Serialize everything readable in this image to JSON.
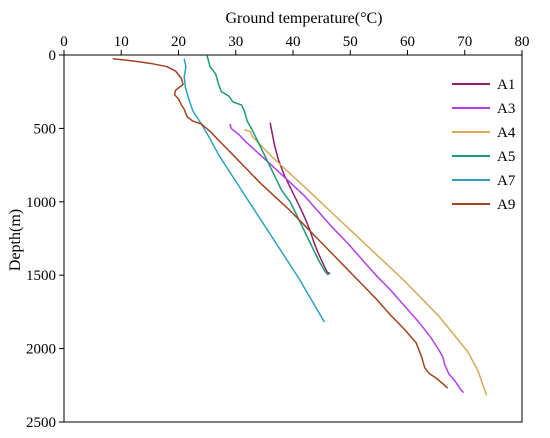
{
  "chart_data": {
    "type": "line",
    "xlabel": "Ground temperature(°C)",
    "ylabel": "Depth(m)",
    "xlim": [
      0,
      80
    ],
    "ylim": [
      0,
      2500
    ],
    "y_reversed": true,
    "x_axis_position": "top",
    "xticks": [
      0,
      10,
      20,
      30,
      40,
      50,
      60,
      70,
      80
    ],
    "yticks": [
      0,
      500,
      1000,
      1500,
      2000,
      2500
    ],
    "grid": false,
    "legend_position": "top-right",
    "series": [
      {
        "name": "A1",
        "color": "#8e1f6e",
        "points": [
          [
            36.0,
            460
          ],
          [
            36.3,
            520
          ],
          [
            36.8,
            620
          ],
          [
            37.5,
            720
          ],
          [
            38.5,
            820
          ],
          [
            39.5,
            900
          ],
          [
            40.5,
            980
          ],
          [
            41.5,
            1060
          ],
          [
            42.3,
            1130
          ],
          [
            43.0,
            1200
          ],
          [
            43.6,
            1270
          ],
          [
            44.3,
            1340
          ],
          [
            45.0,
            1400
          ],
          [
            45.6,
            1450
          ],
          [
            46.0,
            1480
          ],
          [
            46.5,
            1490
          ]
        ]
      },
      {
        "name": "A3",
        "color": "#b43ee8",
        "points": [
          [
            29.0,
            470
          ],
          [
            29.2,
            500
          ],
          [
            30.5,
            540
          ],
          [
            32.0,
            600
          ],
          [
            34.0,
            670
          ],
          [
            36.5,
            760
          ],
          [
            39.0,
            850
          ],
          [
            42.0,
            960
          ],
          [
            44.5,
            1070
          ],
          [
            47.0,
            1180
          ],
          [
            49.5,
            1280
          ],
          [
            52.0,
            1390
          ],
          [
            54.5,
            1500
          ],
          [
            57.0,
            1600
          ],
          [
            59.5,
            1710
          ],
          [
            62.0,
            1820
          ],
          [
            64.0,
            1920
          ],
          [
            65.5,
            2010
          ],
          [
            66.2,
            2060
          ],
          [
            66.5,
            2110
          ],
          [
            67.2,
            2170
          ],
          [
            68.3,
            2220
          ],
          [
            69.3,
            2280
          ],
          [
            69.8,
            2300
          ]
        ]
      },
      {
        "name": "A4",
        "color": "#d4a95a",
        "points": [
          [
            31.5,
            510
          ],
          [
            32.5,
            520
          ],
          [
            33.0,
            560
          ],
          [
            34.5,
            620
          ],
          [
            36.5,
            700
          ],
          [
            39.0,
            790
          ],
          [
            41.5,
            880
          ],
          [
            44.5,
            990
          ],
          [
            47.5,
            1100
          ],
          [
            50.5,
            1210
          ],
          [
            53.5,
            1320
          ],
          [
            56.5,
            1430
          ],
          [
            59.5,
            1540
          ],
          [
            62.5,
            1660
          ],
          [
            65.5,
            1780
          ],
          [
            68.0,
            1900
          ],
          [
            70.5,
            2020
          ],
          [
            72.3,
            2150
          ],
          [
            73.3,
            2260
          ],
          [
            73.8,
            2320
          ]
        ]
      },
      {
        "name": "A5",
        "color": "#1a9b71",
        "points": [
          [
            25.0,
            5
          ],
          [
            25.5,
            80
          ],
          [
            26.5,
            130
          ],
          [
            27.0,
            200
          ],
          [
            27.5,
            250
          ],
          [
            28.8,
            280
          ],
          [
            29.5,
            320
          ],
          [
            31.0,
            340
          ],
          [
            31.5,
            380
          ],
          [
            32.0,
            450
          ],
          [
            33.0,
            520
          ],
          [
            34.0,
            600
          ],
          [
            35.0,
            680
          ],
          [
            36.0,
            760
          ],
          [
            37.0,
            840
          ],
          [
            38.0,
            920
          ],
          [
            39.5,
            1000
          ],
          [
            40.5,
            1080
          ],
          [
            41.5,
            1160
          ],
          [
            42.5,
            1240
          ],
          [
            43.5,
            1320
          ],
          [
            44.5,
            1400
          ],
          [
            45.5,
            1470
          ],
          [
            46.2,
            1500
          ]
        ]
      },
      {
        "name": "A7",
        "color": "#2aa3c2",
        "points": [
          [
            21.0,
            25
          ],
          [
            21.3,
            80
          ],
          [
            21.0,
            150
          ],
          [
            21.2,
            220
          ],
          [
            21.8,
            300
          ],
          [
            22.5,
            380
          ],
          [
            24.0,
            470
          ],
          [
            25.5,
            570
          ],
          [
            27.0,
            680
          ],
          [
            29.0,
            800
          ],
          [
            31.0,
            920
          ],
          [
            33.0,
            1040
          ],
          [
            35.0,
            1160
          ],
          [
            37.0,
            1280
          ],
          [
            39.0,
            1400
          ],
          [
            41.0,
            1520
          ],
          [
            42.5,
            1620
          ],
          [
            44.0,
            1720
          ],
          [
            45.5,
            1820
          ]
        ]
      },
      {
        "name": "A9",
        "color": "#a3421e",
        "points": [
          [
            8.5,
            25
          ],
          [
            12.0,
            40
          ],
          [
            15.5,
            60
          ],
          [
            18.0,
            80
          ],
          [
            19.5,
            110
          ],
          [
            20.5,
            160
          ],
          [
            20.8,
            200
          ],
          [
            19.5,
            240
          ],
          [
            19.3,
            270
          ],
          [
            20.0,
            300
          ],
          [
            20.5,
            340
          ],
          [
            21.0,
            370
          ],
          [
            21.5,
            420
          ],
          [
            22.5,
            450
          ],
          [
            24.0,
            470
          ],
          [
            25.5,
            520
          ],
          [
            27.5,
            600
          ],
          [
            29.5,
            680
          ],
          [
            32.0,
            780
          ],
          [
            34.5,
            880
          ],
          [
            37.0,
            970
          ],
          [
            39.5,
            1060
          ],
          [
            42.0,
            1160
          ],
          [
            44.5,
            1260
          ],
          [
            47.0,
            1360
          ],
          [
            49.5,
            1460
          ],
          [
            52.0,
            1560
          ],
          [
            54.5,
            1660
          ],
          [
            57.0,
            1770
          ],
          [
            59.5,
            1870
          ],
          [
            61.5,
            1960
          ],
          [
            62.5,
            2060
          ],
          [
            63.0,
            2130
          ],
          [
            63.8,
            2170
          ],
          [
            65.0,
            2200
          ],
          [
            66.2,
            2240
          ],
          [
            67.0,
            2270
          ]
        ]
      }
    ]
  }
}
